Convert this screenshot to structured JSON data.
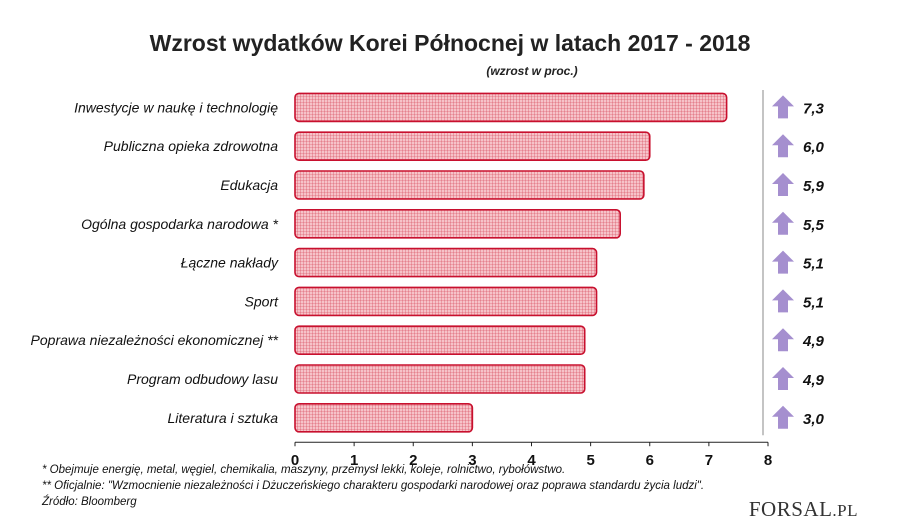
{
  "chart_data": {
    "type": "bar",
    "title": "Wzrost wydatków Korei Północnej w latach 2017 - 2018",
    "subtitle": "(wzrost w proc.)",
    "orientation": "horizontal",
    "categories": [
      "Inwestycje w naukę i technologię",
      "Publiczna opieka zdrowotna",
      "Edukacja",
      "Ogólna gospodarka narodowa *",
      "Łączne nakłady",
      "Sport",
      "Poprawa niezależności ekonomicznej **",
      "Program odbudowy lasu",
      "Literatura i sztuka"
    ],
    "values": [
      7.3,
      6.0,
      5.9,
      5.5,
      5.1,
      5.1,
      4.9,
      4.9,
      3.0
    ],
    "value_labels": [
      "7,3",
      "6,0",
      "5,9",
      "5,5",
      "5,1",
      "5,1",
      "4,9",
      "4,9",
      "3,0"
    ],
    "xlim": [
      0,
      8
    ],
    "xticks": [
      "0",
      "1",
      "2",
      "3",
      "4",
      "5",
      "6",
      "7",
      "8"
    ],
    "xlabel": "",
    "ylabel": "",
    "grid": false,
    "colors": {
      "bar_fill": "#f4b8bf",
      "bar_edge": "#c8102e",
      "arrow": "#a58fcf",
      "divider": "#888888"
    }
  },
  "footnotes": [
    "* Obejmuje energię, metal, węgiel, chemikalia, maszyny, przemysł lekki, koleje, rolnictwo, rybołówstwo.",
    "** Oficjalnie: \"Wzmocnienie niezależności i Dżuczeńskiego charakteru gospodarki narodowej oraz poprawa standardu życia ludzi\".",
    "Źródło: Bloomberg"
  ],
  "logo": {
    "main": "FORSAL",
    "suffix": ".PL"
  }
}
